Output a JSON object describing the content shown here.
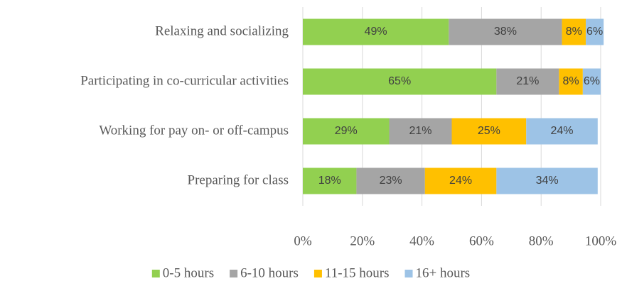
{
  "chart_data": {
    "type": "stacked-bar-horizontal",
    "categories": [
      "Relaxing and socializing",
      "Participating in co-curricular activities",
      "Working for pay on- or off-campus",
      "Preparing for class"
    ],
    "series": [
      {
        "name": "0-5 hours",
        "color": "#92d050",
        "values": [
          49,
          65,
          29,
          18
        ],
        "value_labels": [
          "49%",
          "65%",
          "29%",
          "18%"
        ]
      },
      {
        "name": "6-10 hours",
        "color": "#a5a5a5",
        "values": [
          38,
          21,
          21,
          23
        ],
        "value_labels": [
          "38%",
          "21%",
          "21%",
          "23%"
        ]
      },
      {
        "name": "11-15 hours",
        "color": "#ffc000",
        "values": [
          8,
          8,
          25,
          24
        ],
        "value_labels": [
          "8%",
          "8%",
          "25%",
          "24%"
        ]
      },
      {
        "name": "16+ hours",
        "color": "#9dc3e6",
        "values": [
          6,
          6,
          24,
          34
        ],
        "value_labels": [
          "6%",
          "6%",
          "24%",
          "34%"
        ]
      }
    ],
    "xlim": [
      0,
      100
    ],
    "xticks": [
      {
        "value": 0,
        "label": "0%"
      },
      {
        "value": 20,
        "label": "20%"
      },
      {
        "value": 40,
        "label": "40%"
      },
      {
        "value": 60,
        "label": "60%"
      },
      {
        "value": 80,
        "label": "80%"
      },
      {
        "value": 100,
        "label": "100%"
      }
    ],
    "grid": true,
    "legend": "bottom"
  }
}
